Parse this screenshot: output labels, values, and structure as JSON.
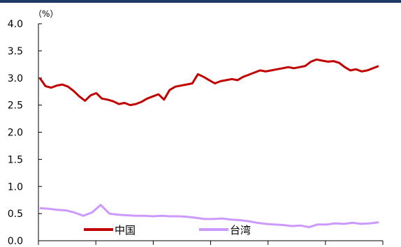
{
  "chart_data": {
    "type": "line",
    "title": "",
    "unit_label": "（%）",
    "xlabel": "",
    "ylabel": "",
    "ylim": [
      0.0,
      4.0
    ],
    "yticks": [
      "0.0",
      "0.5",
      "1.0",
      "1.5",
      "2.0",
      "2.5",
      "3.0",
      "3.5",
      "4.0"
    ],
    "x_tick_count": 7,
    "grid": false,
    "legend_position": "bottom-left-inside",
    "series": [
      {
        "name": "中国",
        "color": "#c00000",
        "values": [
          3.0,
          2.85,
          2.82,
          2.86,
          2.88,
          2.84,
          2.76,
          2.66,
          2.58,
          2.68,
          2.72,
          2.62,
          2.6,
          2.57,
          2.52,
          2.54,
          2.5,
          2.52,
          2.56,
          2.62,
          2.66,
          2.7,
          2.6,
          2.78,
          2.84,
          2.86,
          2.88,
          2.9,
          3.07,
          3.02,
          2.96,
          2.9,
          2.94,
          2.96,
          2.98,
          2.96,
          3.02,
          3.06,
          3.1,
          3.14,
          3.12,
          3.14,
          3.16,
          3.18,
          3.2,
          3.18,
          3.2,
          3.22,
          3.3,
          3.34,
          3.32,
          3.3,
          3.31,
          3.28,
          3.2,
          3.14,
          3.16,
          3.12,
          3.14,
          3.18,
          3.22
        ]
      },
      {
        "name": "台湾",
        "color": "#cc99ff",
        "values": [
          0.6,
          0.59,
          0.57,
          0.56,
          0.52,
          0.46,
          0.52,
          0.66,
          0.5,
          0.48,
          0.47,
          0.46,
          0.46,
          0.45,
          0.46,
          0.45,
          0.45,
          0.44,
          0.42,
          0.4,
          0.4,
          0.41,
          0.39,
          0.38,
          0.36,
          0.33,
          0.31,
          0.3,
          0.29,
          0.27,
          0.28,
          0.25,
          0.3,
          0.3,
          0.32,
          0.31,
          0.33,
          0.31,
          0.32,
          0.34
        ]
      }
    ]
  }
}
